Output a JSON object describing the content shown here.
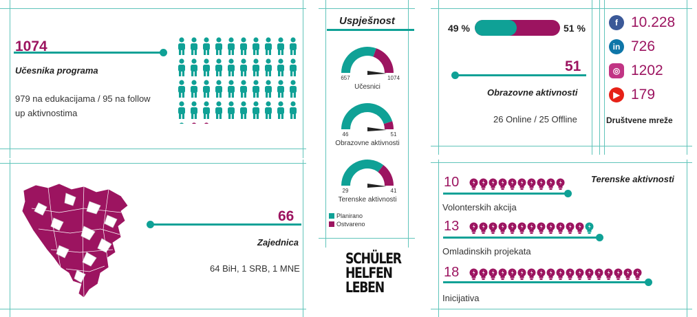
{
  "colors": {
    "teal": "#0fa196",
    "magenta": "#9c1460",
    "grid": "#5fc4ba"
  },
  "participants": {
    "number": "1074",
    "label": "Učesnika programa",
    "detail_line1": "979 na edukacijama / 95 na follow",
    "detail_line2": "up aktivnostima",
    "people_total": 43,
    "people_highlight": 2
  },
  "success": {
    "title": "Uspješnost",
    "gauges": [
      {
        "left": "657",
        "right": "1074",
        "label": "Učesnici",
        "planned": 657,
        "achieved": 1074,
        "fraction": 0.61
      },
      {
        "left": "46",
        "right": "51",
        "label": "Obrazovne aktivnosti",
        "planned": 46,
        "achieved": 51,
        "fraction": 0.9
      },
      {
        "left": "29",
        "right": "41",
        "label": "Terenske aktivnosti",
        "planned": 29,
        "achieved": 41,
        "fraction": 0.71
      }
    ],
    "legend_planned": "Planirano",
    "legend_achieved": "Ostvareno"
  },
  "education": {
    "online_pct": "49 %",
    "offline_pct": "51 %",
    "online_fraction": 0.49,
    "number": "51",
    "label": "Obrazovne aktivnosti",
    "detail": "26 Online / 25 Offline"
  },
  "social": {
    "items": [
      {
        "icon": "facebook-icon",
        "glyph": "f",
        "color": "#3b5998",
        "value": "10.228"
      },
      {
        "icon": "linkedin-icon",
        "glyph": "in",
        "color": "#0e76a8",
        "value": "726"
      },
      {
        "icon": "instagram-icon",
        "glyph": "◎",
        "color": "#c13584",
        "value": "1202"
      },
      {
        "icon": "youtube-icon",
        "glyph": "▶",
        "color": "#e62117",
        "value": "179"
      }
    ],
    "label": "Društvene mreže"
  },
  "communities": {
    "number": "66",
    "label": "Zajednica",
    "detail": "64 BiH, 1 SRB, 1 MNE"
  },
  "logo": {
    "line1": "SCHÜLER",
    "line2": "HELFEN",
    "line3": "LEBEN"
  },
  "field": {
    "title": "Terenske aktivnosti",
    "rows": [
      {
        "number": "10",
        "label": "Volonterskih akcija",
        "count": 10,
        "teal": 0
      },
      {
        "number": "13",
        "label": "Omladinskih projekata",
        "count": 12,
        "teal": 1
      },
      {
        "number": "18",
        "label": "Inicijativa",
        "count": 18,
        "teal": 0
      }
    ]
  }
}
